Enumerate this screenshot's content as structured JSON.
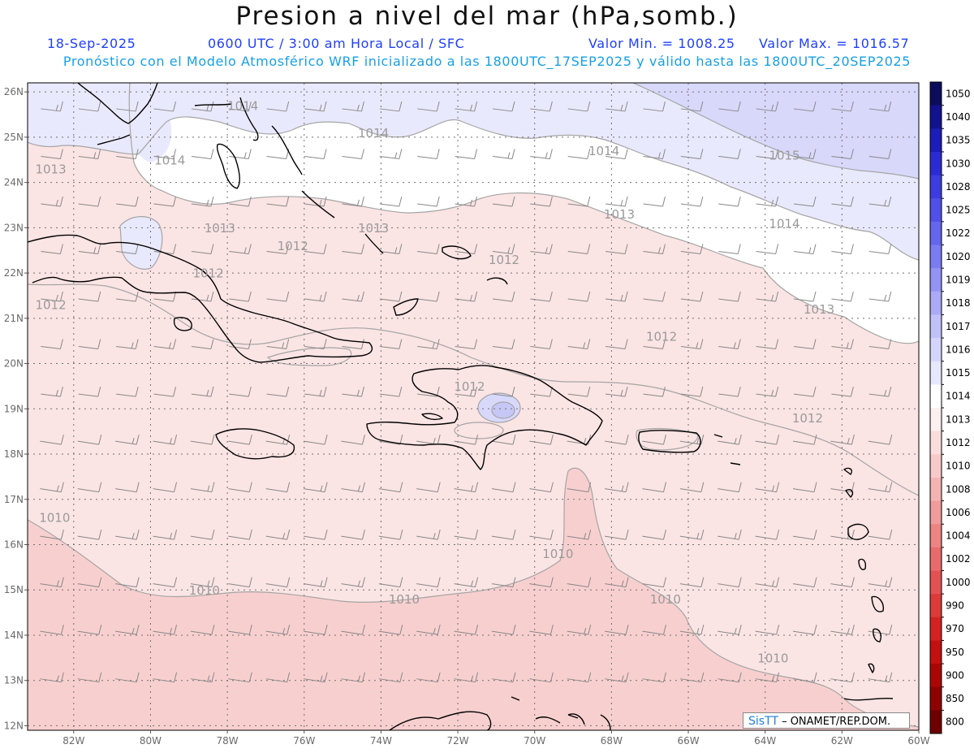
{
  "header": {
    "title": "Presion a nivel del mar (hPa,somb.)",
    "date": "18-Sep-2025",
    "time_info": "0600 UTC / 3:00 am Hora Local / SFC",
    "min_value": "Valor Min. = 1008.25",
    "max_value": "Valor Max. = 1016.57",
    "model_info": "Pronóstico con el Modelo Atmosférico WRF inicializado a las 1800UTC_17SEP2025 y válido hasta las  1800UTC_20SEP2025"
  },
  "axes": {
    "lat_labels": [
      "26N",
      "25N",
      "24N",
      "23N",
      "22N",
      "21N",
      "20N",
      "19N",
      "18N",
      "17N",
      "16N",
      "15N",
      "14N",
      "13N",
      "12N"
    ],
    "lon_labels": [
      "82W",
      "80W",
      "78W",
      "76W",
      "74W",
      "72W",
      "70W",
      "68W",
      "66W",
      "64W",
      "62W",
      "60W"
    ]
  },
  "colorbar": {
    "labels": [
      "1050",
      "1040",
      "1035",
      "1030",
      "1028",
      "1025",
      "1022",
      "1020",
      "1019",
      "1018",
      "1017",
      "1016",
      "1015",
      "1014",
      "1013",
      "1012",
      "1010",
      "1008",
      "1006",
      "1004",
      "1002",
      "1000",
      "990",
      "970",
      "950",
      "900",
      "850",
      "800"
    ],
    "colors": [
      "#0c0c5c",
      "#12128f",
      "#1c1cb8",
      "#2b2bd4",
      "#3c3ce0",
      "#5050e8",
      "#6565ee",
      "#7b7bf2",
      "#9393f5",
      "#aaaaf7",
      "#c1c1f9",
      "#d5d5fb",
      "#e7e7fd",
      "#ffffff",
      "#fdf0f0",
      "#fbdddd",
      "#f8c9c9",
      "#f4b3b3",
      "#f09c9c",
      "#ec8484",
      "#e86b6b",
      "#e35252",
      "#dd3a3a",
      "#d42222",
      "#c41010",
      "#ab0606",
      "#8e0202",
      "#6e0000"
    ]
  },
  "contour_labels": [
    {
      "text": "1014",
      "lon": -78.0,
      "lat": 25.6
    },
    {
      "text": "1014",
      "lon": -74.6,
      "lat": 25.0
    },
    {
      "text": "1014",
      "lon": -79.9,
      "lat": 24.4
    },
    {
      "text": "1014",
      "lon": -68.6,
      "lat": 24.6
    },
    {
      "text": "1015",
      "lon": -63.9,
      "lat": 24.5
    },
    {
      "text": "1014",
      "lon": -63.9,
      "lat": 23.0
    },
    {
      "text": "1013",
      "lon": -83.0,
      "lat": 24.2
    },
    {
      "text": "1013",
      "lon": -74.6,
      "lat": 22.9
    },
    {
      "text": "1013",
      "lon": -78.6,
      "lat": 22.9
    },
    {
      "text": "1013",
      "lon": -68.2,
      "lat": 23.2
    },
    {
      "text": "1013",
      "lon": -63.0,
      "lat": 21.1
    },
    {
      "text": "1012",
      "lon": -76.7,
      "lat": 22.5
    },
    {
      "text": "1012",
      "lon": -71.2,
      "lat": 22.2
    },
    {
      "text": "1012",
      "lon": -78.9,
      "lat": 21.9
    },
    {
      "text": "1012",
      "lon": -83.0,
      "lat": 21.2
    },
    {
      "text": "1012",
      "lon": -67.1,
      "lat": 20.5
    },
    {
      "text": "1012",
      "lon": -72.1,
      "lat": 19.4
    },
    {
      "text": "1012",
      "lon": -63.3,
      "lat": 18.7
    },
    {
      "text": "1010",
      "lon": -82.9,
      "lat": 16.5
    },
    {
      "text": "1010",
      "lon": -69.8,
      "lat": 15.7
    },
    {
      "text": "1010",
      "lon": -79.0,
      "lat": 14.9
    },
    {
      "text": "1010",
      "lon": -73.8,
      "lat": 14.7
    },
    {
      "text": "1010",
      "lon": -67.0,
      "lat": 14.7
    },
    {
      "text": "1010",
      "lon": -64.2,
      "lat": 13.4
    }
  ],
  "colors": {
    "pink_light": "#fbe4e4",
    "pink_medium": "#f8cfcf",
    "white_band": "#ffffff",
    "lavender": "#e9e9fd",
    "lavender_dark": "#d8d8fb",
    "coast": "#000000",
    "contour": "#a5a5a5",
    "title_blue": "#1f3fff",
    "subtitle_cyan": "#17a0e6"
  },
  "credit": {
    "brand": "SisTT",
    "text": " – ONAMET/REP.DOM."
  }
}
